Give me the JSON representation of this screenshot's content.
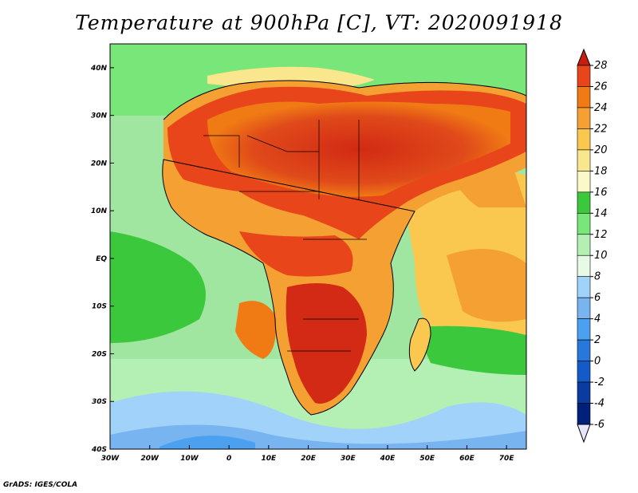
{
  "title": "Temperature at 900hPa [C], VT: 2020091918",
  "credit": "GrADS: IGES/COLA",
  "map": {
    "lon_ticks": [
      "30W",
      "20W",
      "10W",
      "0",
      "10E",
      "20E",
      "30E",
      "40E",
      "50E",
      "60E",
      "70E"
    ],
    "lat_ticks": [
      "40N",
      "30N",
      "20N",
      "10N",
      "EQ",
      "10S",
      "20S",
      "30S",
      "40S"
    ],
    "lon_range": [
      -30,
      75
    ],
    "lat_range": [
      -40,
      45
    ],
    "ocean_color": "#a0e6a0",
    "hot_core_color": "#d22a14"
  },
  "colorbar": {
    "levels": [
      "28",
      "26",
      "24",
      "22",
      "20",
      "18",
      "16",
      "14",
      "12",
      "10",
      "8",
      "6",
      "4",
      "2",
      "0",
      "-2",
      "-4",
      "-6"
    ],
    "colors": [
      "#c81e10",
      "#e8461a",
      "#f07a14",
      "#f5a032",
      "#fac84e",
      "#fae68c",
      "#fafac8",
      "#3cc83c",
      "#78e678",
      "#b4f0b4",
      "#e6fae6",
      "#a0d2fa",
      "#78b4f0",
      "#4ba0f0",
      "#2878dc",
      "#145ac8",
      "#0a3ca0",
      "#00207a"
    ]
  }
}
